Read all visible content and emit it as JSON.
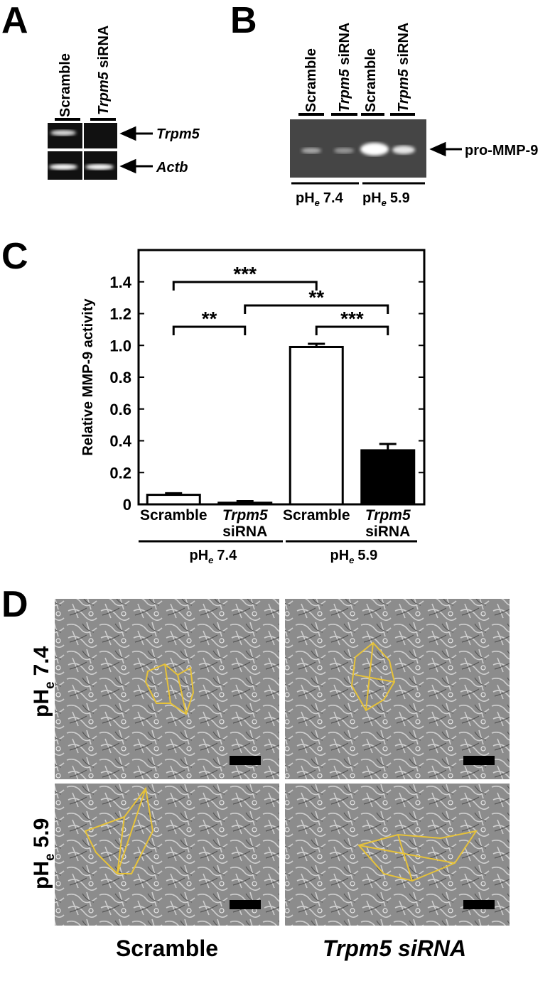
{
  "panel_a": {
    "label": "A",
    "lanes": [
      {
        "text": "Scramble"
      },
      {
        "gene": "Trpm5",
        "text": "siRNA"
      }
    ],
    "bands": [
      "Trpm5",
      "Actb"
    ]
  },
  "panel_b": {
    "label": "B",
    "lanes": [
      {
        "text": "Scramble"
      },
      {
        "gene": "Trpm5",
        "text": "siRNA"
      },
      {
        "text": "Scramble"
      },
      {
        "gene": "Trpm5",
        "text": "siRNA"
      }
    ],
    "band": "pro-MMP-9",
    "groups": [
      {
        "base": "pH",
        "sub": "e",
        "value": "7.4"
      },
      {
        "base": "pH",
        "sub": "e",
        "value": "5.9"
      }
    ]
  },
  "chart_data": {
    "label": "C",
    "type": "bar",
    "ylabel": "Relative MMP-9 activity",
    "categories": [
      "Scramble",
      "Trpm5 siRNA",
      "Scramble",
      "Trpm5 siRNA"
    ],
    "values": [
      0.06,
      0.01,
      0.99,
      0.34
    ],
    "errors": [
      0.01,
      0.01,
      0.02,
      0.04
    ],
    "colors": [
      "#ffffff",
      "#ffffff",
      "#ffffff",
      "#000000"
    ],
    "ylim": [
      0,
      1.6
    ],
    "yticks": [
      0,
      0.2,
      0.4,
      0.6,
      0.8,
      {
        "value": 1,
        "label": "1.0"
      },
      1.2,
      1.4
    ],
    "groups": [
      {
        "base": "pH",
        "sub": "e",
        "value": "7.4"
      },
      {
        "base": "pH",
        "sub": "e",
        "value": "5.9"
      }
    ],
    "significance": [
      {
        "from": 0,
        "to": 2,
        "label": "***"
      },
      {
        "from": 0,
        "to": 1,
        "label": "**"
      },
      {
        "from": 1,
        "to": 3,
        "label": "**"
      },
      {
        "from": 2,
        "to": 3,
        "label": "***"
      }
    ]
  },
  "panel_d": {
    "label": "D",
    "rows": [
      {
        "base": "pH",
        "sub": "e",
        "value": "7.4"
      },
      {
        "base": "pH",
        "sub": "e",
        "value": "5.9"
      }
    ],
    "columns": [
      "Scramble",
      "Trpm5 siRNA"
    ]
  }
}
